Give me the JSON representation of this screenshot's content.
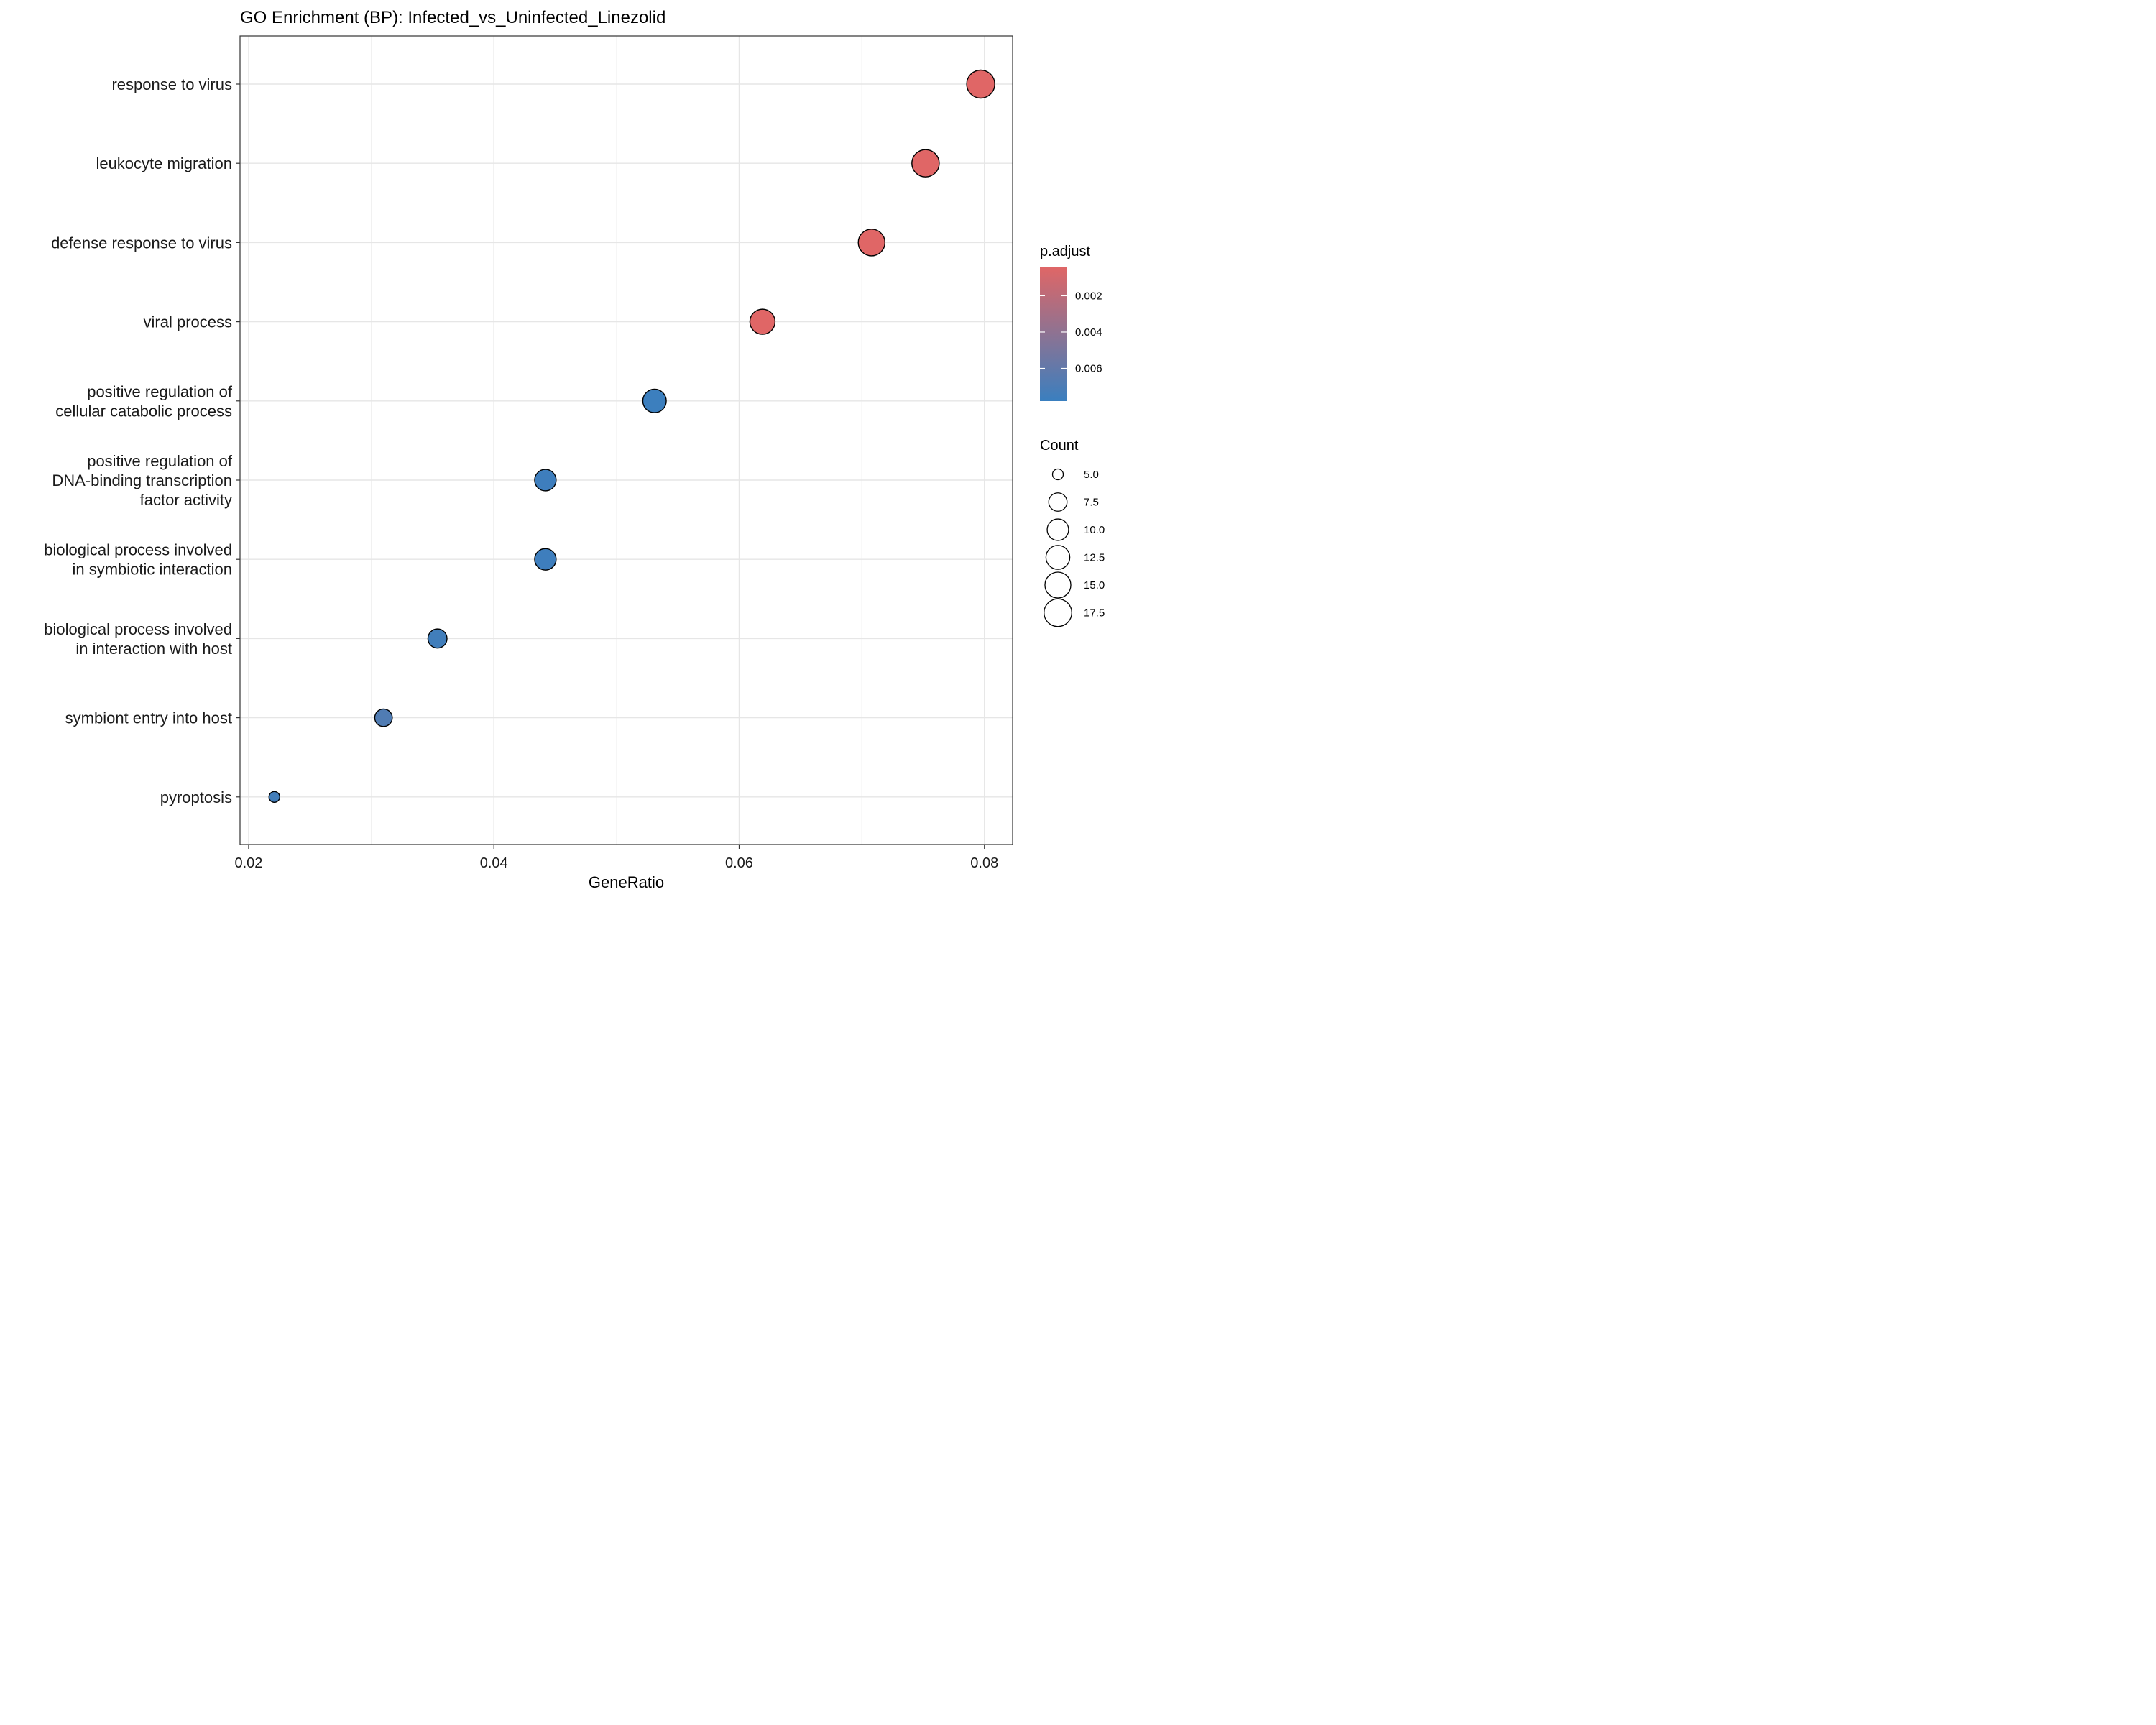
{
  "chart_data": {
    "type": "scatter",
    "title": "GO Enrichment (BP): Infected_vs_Uninfected_Linezolid",
    "xlabel": "GeneRatio",
    "ylabel": "",
    "xlim": [
      0.0193,
      0.0823
    ],
    "x_ticks": [
      {
        "value": 0.02,
        "label": "0.02"
      },
      {
        "value": 0.04,
        "label": "0.04"
      },
      {
        "value": 0.06,
        "label": "0.06"
      },
      {
        "value": 0.08,
        "label": "0.08"
      }
    ],
    "grid": true,
    "categories": [
      {
        "label": [
          "response to virus"
        ],
        "gene_ratio": 0.0797,
        "count": 18,
        "p_adjust": 0.0004
      },
      {
        "label": [
          "leukocyte migration"
        ],
        "gene_ratio": 0.0752,
        "count": 17,
        "p_adjust": 0.0004
      },
      {
        "label": [
          "defense response to virus"
        ],
        "gene_ratio": 0.0708,
        "count": 16,
        "p_adjust": 0.0004
      },
      {
        "label": [
          "viral process"
        ],
        "gene_ratio": 0.0619,
        "count": 14,
        "p_adjust": 0.0004
      },
      {
        "label": [
          "positive regulation of",
          "cellular catabolic process"
        ],
        "gene_ratio": 0.0531,
        "count": 12,
        "p_adjust": 0.0077
      },
      {
        "label": [
          "positive regulation of",
          "DNA-binding transcription",
          "factor activity"
        ],
        "gene_ratio": 0.0442,
        "count": 10,
        "p_adjust": 0.0076
      },
      {
        "label": [
          "biological process involved",
          "in symbiotic interaction"
        ],
        "gene_ratio": 0.0442,
        "count": 10,
        "p_adjust": 0.0076
      },
      {
        "label": [
          "biological process involved",
          "in interaction with host"
        ],
        "gene_ratio": 0.0354,
        "count": 8,
        "p_adjust": 0.0075
      },
      {
        "label": [
          "symbiont entry into host"
        ],
        "gene_ratio": 0.031,
        "count": 7,
        "p_adjust": 0.0068
      },
      {
        "label": [
          "pyroptosis"
        ],
        "gene_ratio": 0.0221,
        "count": 5,
        "p_adjust": 0.0074
      }
    ],
    "color_legend": {
      "title": "p.adjust",
      "range": [
        0.0004,
        0.0078
      ],
      "low_color": "#e06666",
      "high_color": "#3a7fbf",
      "ticks": [
        {
          "value": 0.002,
          "label": "0.002"
        },
        {
          "value": 0.004,
          "label": "0.004"
        },
        {
          "value": 0.006,
          "label": "0.006"
        }
      ]
    },
    "size_legend": {
      "title": "Count",
      "range": [
        5,
        18
      ],
      "entries": [
        {
          "value": 5.0,
          "label": "5.0"
        },
        {
          "value": 7.5,
          "label": "7.5"
        },
        {
          "value": 10.0,
          "label": "10.0"
        },
        {
          "value": 12.5,
          "label": "12.5"
        },
        {
          "value": 15.0,
          "label": "15.0"
        },
        {
          "value": 17.5,
          "label": "17.5"
        }
      ]
    }
  }
}
